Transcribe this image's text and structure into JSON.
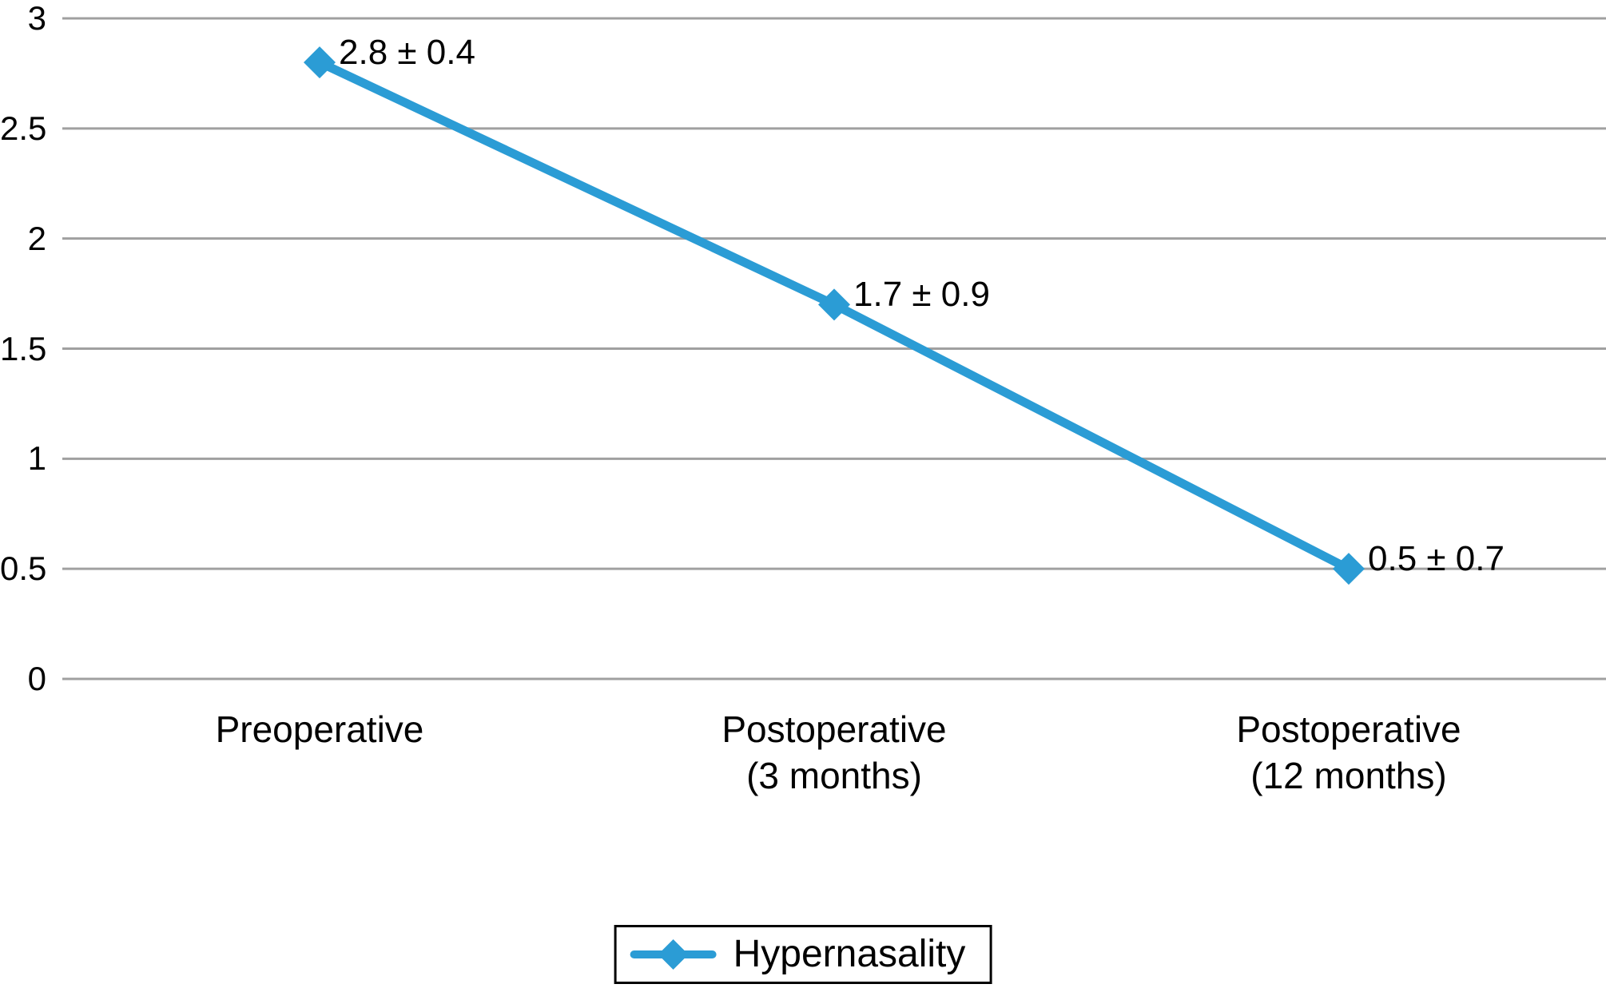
{
  "chart_data": {
    "type": "line",
    "categories": [
      "Preoperative",
      "Postoperative\n(3 months)",
      "Postoperative\n(12 months)"
    ],
    "series": [
      {
        "name": "Hypernasality",
        "values": [
          2.8,
          1.7,
          0.5
        ],
        "point_labels": [
          "2.8 ± 0.4",
          "1.7 ± 0.9",
          "0.5 ± 0.7"
        ]
      }
    ],
    "ylim": [
      0,
      3
    ],
    "ytick_values": [
      3,
      2.5,
      2,
      1.5,
      1,
      0.5,
      0
    ],
    "ytick_labels": [
      "3",
      "2.5",
      "2",
      "1.5",
      "1",
      "0.5",
      "0"
    ],
    "grid": "horizontal",
    "legend_position": "bottom-center",
    "marker": "diamond",
    "colors": {
      "line": "#2B9CD5",
      "gridline": "#A0A0A0",
      "text": "#000000",
      "legend_border": "#000000"
    }
  },
  "legend": {
    "label": "Hypernasality"
  }
}
